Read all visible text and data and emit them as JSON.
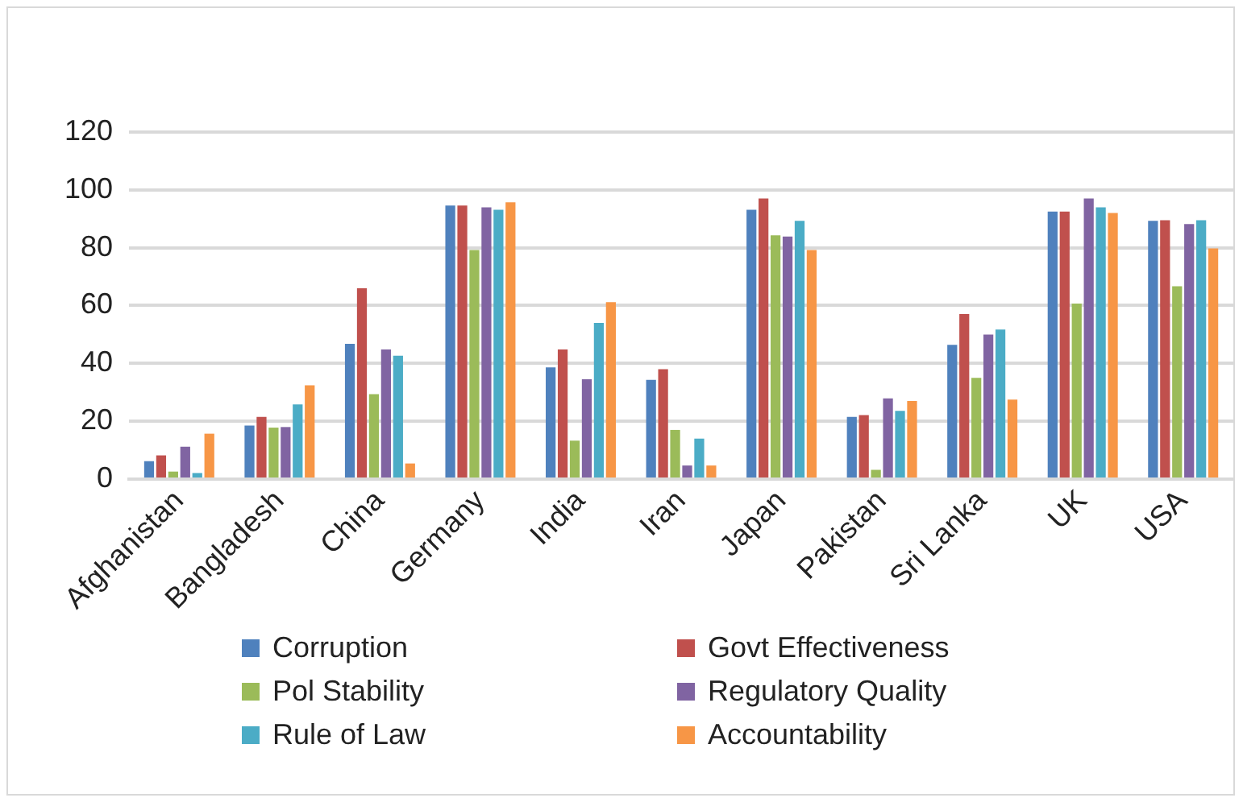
{
  "chart_data": {
    "type": "bar",
    "categories": [
      "Afghanistan",
      "Bangladesh",
      "China",
      "Germany",
      "India",
      "Iran",
      "Japan",
      "Pakistan",
      "Sri Lanka",
      "UK",
      "USA"
    ],
    "series": [
      {
        "name": "Corruption",
        "color": "#4f81bd",
        "values": [
          6.2,
          18.5,
          46.8,
          94.6,
          38.6,
          34.3,
          93.1,
          21.5,
          46.4,
          92.5,
          89.3
        ]
      },
      {
        "name": "Govt Effectiveness",
        "color": "#c0504d",
        "values": [
          8.2,
          21.5,
          66,
          94.6,
          44.8,
          38,
          97,
          22.1,
          57.1,
          92.5,
          89.5
        ]
      },
      {
        "name": "Pol Stability",
        "color": "#9bbb59",
        "values": [
          2.6,
          17.8,
          29.4,
          79.2,
          13.3,
          17,
          84.3,
          3.2,
          35,
          60.7,
          66.7
        ]
      },
      {
        "name": "Regulatory Quality",
        "color": "#8064a2",
        "values": [
          11.2,
          18,
          44.8,
          94,
          34.5,
          4.7,
          83.9,
          27.9,
          50,
          97,
          88.2
        ]
      },
      {
        "name": "Rule of Law",
        "color": "#4bacc6",
        "values": [
          2.1,
          25.8,
          42.7,
          93.1,
          54,
          14,
          89.3,
          23.6,
          51.7,
          94,
          89.5
        ]
      },
      {
        "name": "Accountability",
        "color": "#f79646",
        "values": [
          15.7,
          32.4,
          5.4,
          95.7,
          61.2,
          4.7,
          79.2,
          27,
          27.5,
          92,
          79.8
        ]
      }
    ],
    "ylim": [
      0,
      120
    ],
    "yticks": [
      0,
      20,
      40,
      60,
      80,
      100,
      120
    ],
    "grid": "y",
    "legend": "bottom"
  }
}
